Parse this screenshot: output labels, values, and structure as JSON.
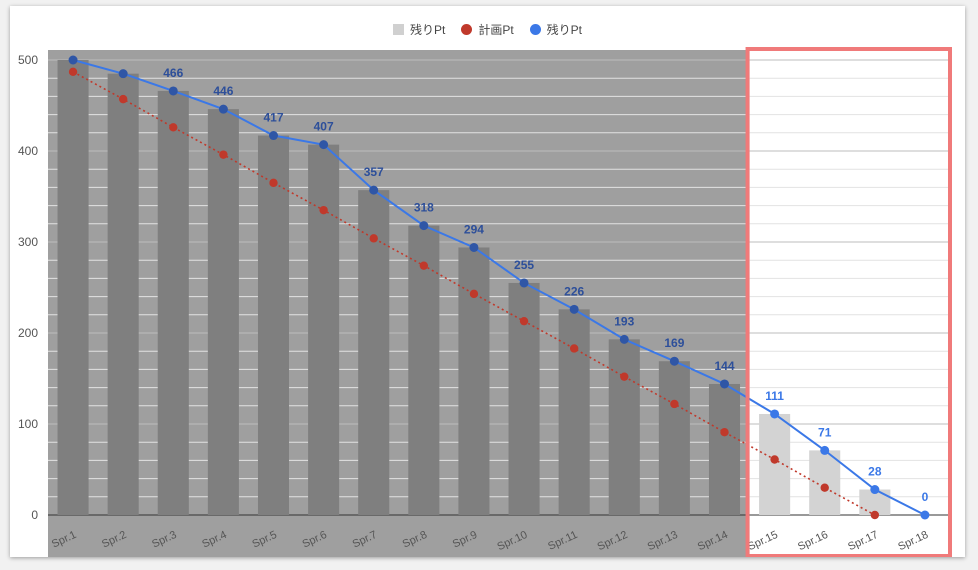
{
  "chart_data": {
    "type": "bar",
    "categories": [
      "Spr.1",
      "Spr.2",
      "Spr.3",
      "Spr.4",
      "Spr.5",
      "Spr.6",
      "Spr.7",
      "Spr.8",
      "Spr.9",
      "Spr.10",
      "Spr.11",
      "Spr.12",
      "Spr.13",
      "Spr.14",
      "Spr.15",
      "Spr.16",
      "Spr.17",
      "Spr.18"
    ],
    "ylim": [
      0,
      500
    ],
    "yticks": [
      0,
      100,
      200,
      300,
      400,
      500
    ],
    "grid": true,
    "legend_position": "top",
    "series": [
      {
        "name": "残りPt",
        "kind": "bar",
        "color": "#d3d3d3",
        "values": [
          500,
          485,
          466,
          446,
          417,
          407,
          357,
          318,
          294,
          255,
          226,
          193,
          169,
          144,
          111,
          71,
          28,
          0
        ]
      },
      {
        "name": "計画Pt",
        "kind": "dotted-line",
        "color": "#c0392b",
        "values": [
          487,
          457,
          426,
          396,
          365,
          335,
          304,
          274,
          243,
          213,
          183,
          152,
          122,
          91,
          61,
          30,
          0,
          null
        ]
      },
      {
        "name": "残りPt",
        "kind": "line",
        "color": "#3b78e7",
        "values": [
          500,
          485,
          466,
          446,
          417,
          407,
          357,
          318,
          294,
          255,
          226,
          193,
          169,
          144,
          111,
          71,
          28,
          0
        ]
      }
    ],
    "data_labels": [
      "",
      "",
      "466",
      "446",
      "417",
      "407",
      "357",
      "318",
      "294",
      "255",
      "226",
      "193",
      "169",
      "144",
      "111",
      "71",
      "28",
      "0"
    ],
    "shaded_range_categories": [
      "Spr.1",
      "Spr.14"
    ],
    "highlight_range_categories": [
      "Spr.15",
      "Spr.18"
    ],
    "colors": {
      "shade": "#8a8a8a",
      "highlight_border": "#f07a7a",
      "grid": "#cccccc",
      "axis_text": "#555555"
    }
  }
}
